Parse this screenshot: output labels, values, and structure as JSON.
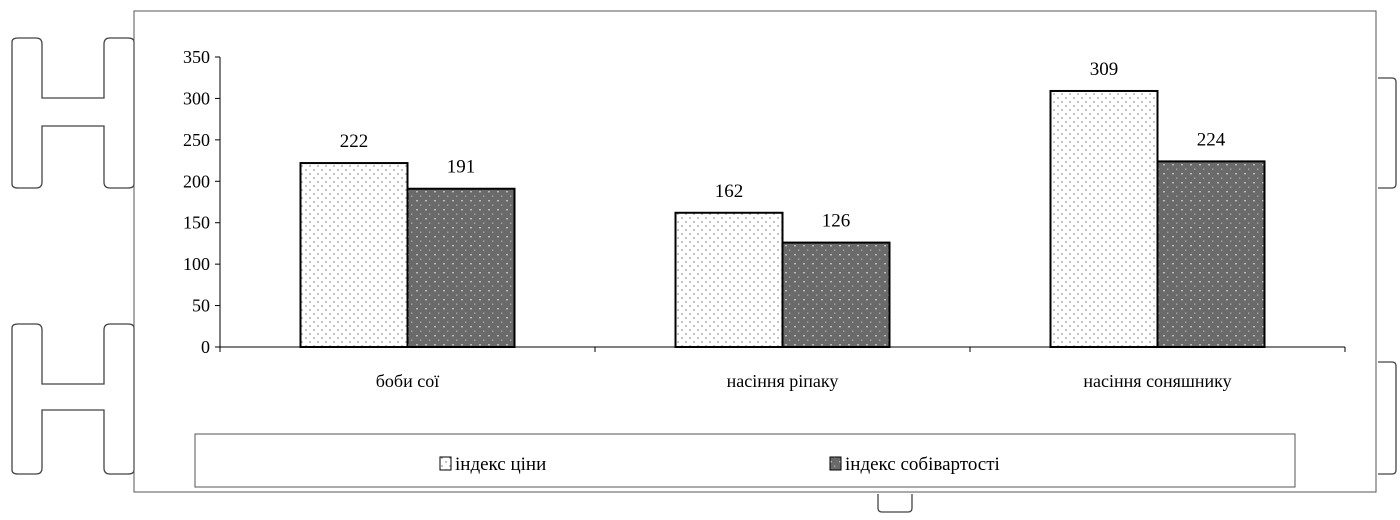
{
  "chart_data": {
    "type": "bar",
    "categories": [
      "боби сої",
      "насіння ріпаку",
      "насіння соняшнику"
    ],
    "series": [
      {
        "name": "індекс ціни",
        "values": [
          222,
          162,
          309
        ],
        "color": "#ffffff",
        "pattern": "dots-light"
      },
      {
        "name": "індекс собівартості",
        "values": [
          191,
          126,
          224
        ],
        "color": "#666666",
        "pattern": "dots-dark"
      }
    ],
    "yticks": [
      0,
      50,
      100,
      150,
      200,
      250,
      300,
      350
    ],
    "ylim": [
      0,
      350
    ],
    "grid": false,
    "legend": "bottom",
    "data_labels": true
  }
}
